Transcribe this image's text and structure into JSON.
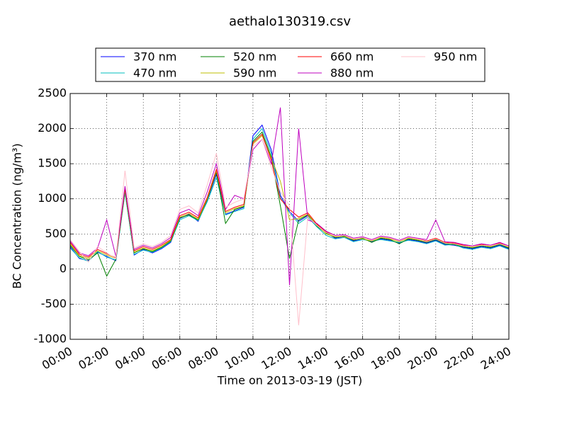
{
  "chart_data": {
    "type": "line",
    "title": "aethalo130319.csv",
    "xlabel": "Time on 2013-03-19 (JST)",
    "ylabel": "BC Concentration (ng/m³)",
    "x": [
      0,
      0.5,
      1,
      1.5,
      2,
      2.5,
      3,
      3.5,
      4,
      4.5,
      5,
      5.5,
      6,
      6.5,
      7,
      7.5,
      8,
      8.5,
      9,
      9.5,
      10,
      10.5,
      11,
      11.5,
      12,
      12.5,
      13,
      13.5,
      14,
      14.5,
      15,
      15.5,
      16,
      16.5,
      17,
      17.5,
      18,
      18.5,
      19,
      19.5,
      20,
      20.5,
      21,
      21.5,
      22,
      22.5,
      23,
      23.5,
      24
    ],
    "xlim": [
      0,
      24
    ],
    "xticks": [
      {
        "value": 0,
        "label": "00:00"
      },
      {
        "value": 2,
        "label": "02:00"
      },
      {
        "value": 4,
        "label": "04:00"
      },
      {
        "value": 6,
        "label": "06:00"
      },
      {
        "value": 8,
        "label": "08:00"
      },
      {
        "value": 10,
        "label": "10:00"
      },
      {
        "value": 12,
        "label": "12:00"
      },
      {
        "value": 14,
        "label": "14:00"
      },
      {
        "value": 16,
        "label": "16:00"
      },
      {
        "value": 18,
        "label": "18:00"
      },
      {
        "value": 20,
        "label": "20:00"
      },
      {
        "value": 22,
        "label": "22:00"
      },
      {
        "value": 24,
        "label": "24:00"
      }
    ],
    "ylim": [
      -1000,
      2500
    ],
    "yticks": [
      -1000,
      -500,
      0,
      500,
      1000,
      1500,
      2000,
      2500
    ],
    "grid": true,
    "legend": "upper center",
    "series": [
      {
        "name": "370 nm",
        "color": "#0000ff",
        "values": [
          320,
          150,
          120,
          240,
          180,
          120,
          1100,
          200,
          280,
          230,
          290,
          380,
          720,
          780,
          680,
          980,
          1350,
          780,
          830,
          880,
          1900,
          2050,
          1700,
          1050,
          820,
          680,
          760,
          620,
          520,
          440,
          460,
          400,
          430,
          390,
          430,
          410,
          370,
          420,
          400,
          370,
          410,
          350,
          340,
          310,
          290,
          320,
          300,
          340,
          290
        ]
      },
      {
        "name": "470 nm",
        "color": "#00bfbf",
        "values": [
          300,
          160,
          110,
          250,
          170,
          130,
          1080,
          210,
          270,
          240,
          300,
          390,
          700,
          760,
          690,
          960,
          1300,
          770,
          820,
          860,
          1850,
          2000,
          1650,
          1020,
          800,
          650,
          740,
          600,
          480,
          430,
          450,
          390,
          420,
          400,
          420,
          400,
          380,
          410,
          390,
          360,
          400,
          340,
          350,
          300,
          280,
          310,
          290,
          330,
          280
        ]
      },
      {
        "name": "520 nm",
        "color": "#008000",
        "values": [
          340,
          180,
          130,
          230,
          -100,
          140,
          1120,
          230,
          290,
          250,
          310,
          400,
          730,
          770,
          700,
          990,
          1380,
          650,
          850,
          890,
          1820,
          1950,
          1600,
          900,
          150,
          700,
          770,
          610,
          510,
          450,
          470,
          410,
          440,
          380,
          440,
          420,
          360,
          430,
          410,
          380,
          420,
          360,
          350,
          320,
          300,
          330,
          310,
          350,
          300
        ]
      },
      {
        "name": "590 nm",
        "color": "#bfbf00",
        "values": [
          360,
          190,
          150,
          260,
          200,
          150,
          1130,
          240,
          300,
          260,
          320,
          410,
          740,
          790,
          710,
          1000,
          1400,
          800,
          860,
          900,
          1780,
          1900,
          1580,
          1250,
          700,
          720,
          780,
          630,
          500,
          460,
          460,
          420,
          430,
          400,
          450,
          430,
          390,
          440,
          420,
          390,
          430,
          370,
          360,
          330,
          310,
          340,
          320,
          360,
          310
        ]
      },
      {
        "name": "660 nm",
        "color": "#ff0000",
        "values": [
          380,
          210,
          170,
          280,
          220,
          160,
          1150,
          260,
          320,
          280,
          340,
          420,
          760,
          810,
          730,
          1020,
          1420,
          820,
          880,
          920,
          1800,
          1920,
          1550,
          1000,
          850,
          740,
          800,
          640,
          530,
          470,
          480,
          430,
          450,
          410,
          460,
          440,
          400,
          450,
          430,
          400,
          440,
          380,
          370,
          340,
          320,
          350,
          330,
          370,
          320
        ]
      },
      {
        "name": "880 nm",
        "color": "#bf00bf",
        "values": [
          400,
          230,
          190,
          300,
          700,
          180,
          1180,
          280,
          340,
          300,
          360,
          450,
          800,
          850,
          760,
          1100,
          1500,
          850,
          1050,
          1000,
          1700,
          1850,
          1500,
          2300,
          -230,
          2000,
          700,
          650,
          540,
          480,
          490,
          440,
          460,
          420,
          470,
          450,
          410,
          460,
          440,
          420,
          700,
          390,
          380,
          350,
          330,
          360,
          340,
          380,
          330
        ]
      },
      {
        "name": "950 nm",
        "color": "#ffc0cb",
        "values": [
          420,
          250,
          100,
          320,
          230,
          150,
          1400,
          300,
          360,
          320,
          380,
          480,
          850,
          900,
          800,
          1200,
          1650,
          880,
          950,
          1000,
          1750,
          1850,
          1450,
          1100,
          900,
          -800,
          750,
          620,
          520,
          470,
          480,
          430,
          450,
          410,
          460,
          440,
          400,
          450,
          430,
          390,
          430,
          370,
          360,
          330,
          320,
          340,
          330,
          360,
          320
        ]
      }
    ]
  }
}
